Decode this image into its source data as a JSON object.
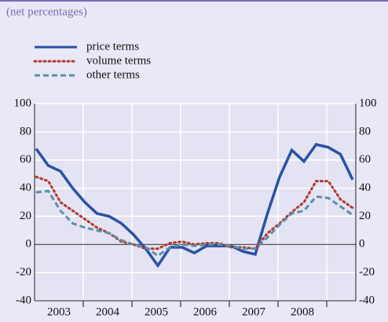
{
  "chart_data": {
    "type": "line",
    "subtitle": "(net percentages)",
    "x_labels": [
      "2003",
      "2004",
      "2005",
      "2006",
      "2007",
      "2008"
    ],
    "series": [
      {
        "name": "price terms",
        "color": "#2a52a3",
        "style": "solid",
        "values": [
          68,
          56,
          52,
          40,
          30,
          22,
          20,
          15,
          7,
          -3,
          -15,
          -2,
          -2,
          -6,
          -1,
          -1,
          -1,
          -5,
          -7,
          22,
          48,
          67,
          59,
          71,
          69,
          64,
          46
        ]
      },
      {
        "name": "volume terms",
        "color": "#b4392c",
        "style": "dotted",
        "values": [
          48,
          45,
          30,
          24,
          18,
          12,
          8,
          2,
          0,
          -3,
          -3,
          1,
          2,
          0,
          1,
          1,
          -2,
          -2,
          -3,
          8,
          15,
          23,
          30,
          45,
          45,
          32,
          26
        ]
      },
      {
        "name": "other terms",
        "color": "#5b90a8",
        "style": "dashed",
        "values": [
          37,
          38,
          24,
          15,
          12,
          10,
          8,
          3,
          0,
          -2,
          -8,
          -2,
          0,
          -1,
          0,
          0,
          -1,
          -3,
          -3,
          5,
          14,
          22,
          24,
          34,
          33,
          27,
          21
        ]
      }
    ],
    "ylim": [
      -40,
      100
    ],
    "yticks": [
      -40,
      -20,
      0,
      20,
      40,
      60,
      80,
      100
    ],
    "grid": true,
    "right_axis": true
  }
}
